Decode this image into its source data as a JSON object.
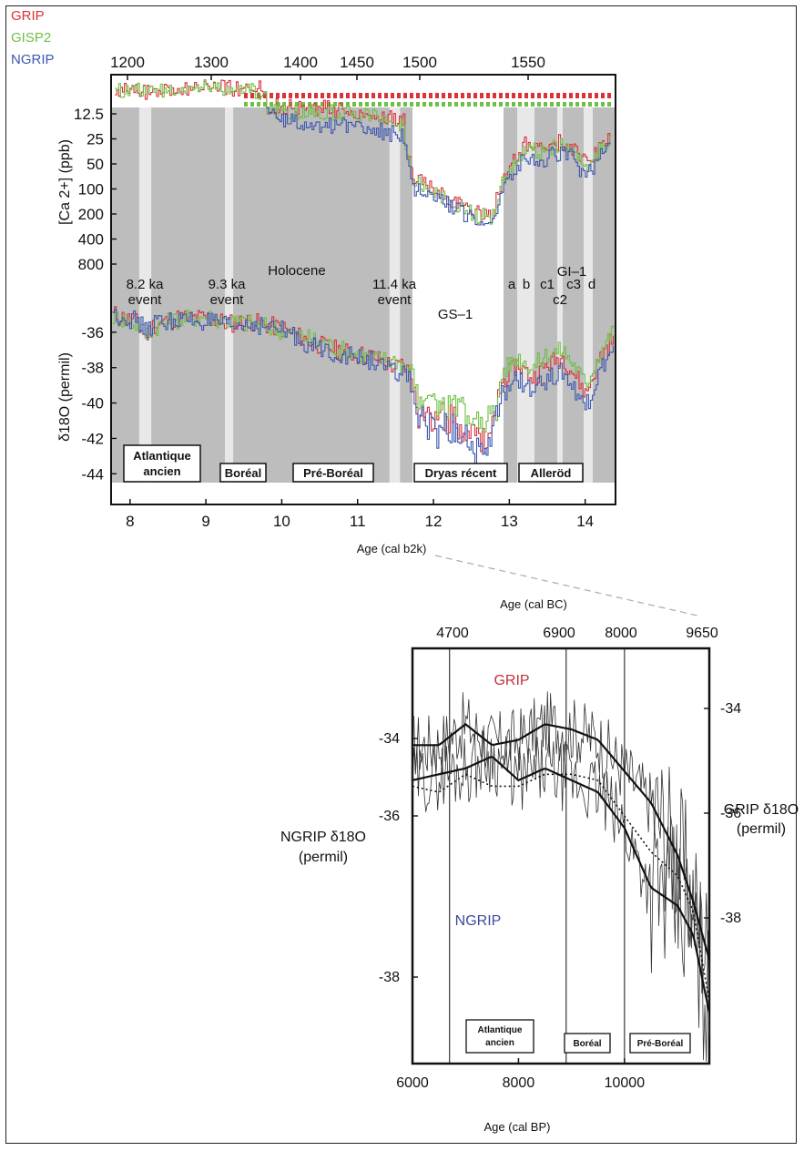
{
  "chart_data": [
    {
      "type": "line",
      "legend": [
        {
          "name": "GRIP",
          "color": "#d9323a"
        },
        {
          "name": "GISP2",
          "color": "#6fbf44"
        },
        {
          "name": "NGRIP",
          "color": "#3d56b0"
        }
      ],
      "top_axis_ticks": [
        "1200",
        "1300",
        "1400",
        "1450",
        "1500",
        "1550"
      ],
      "x_axis": {
        "label": "Age (cal b2k)",
        "ticks": [
          "8",
          "9",
          "10",
          "11",
          "12",
          "13",
          "14"
        ],
        "range": [
          7.75,
          14.4
        ]
      },
      "ca_axis": {
        "label": "[Ca 2+] (ppb)",
        "scale": "log",
        "ticks": [
          "12.5",
          "25",
          "50",
          "100",
          "200",
          "400",
          "800"
        ]
      },
      "d18o_axis": {
        "label": "δ18O (permil)",
        "ticks": [
          "-36",
          "-38",
          "-40",
          "-42",
          "-44"
        ],
        "range": [
          -44.5,
          -34
        ]
      },
      "annotations": {
        "holocene": "Holocene",
        "event_82_a": "8.2 ka",
        "event_82_b": "event",
        "event_93_a": "9.3 ka",
        "event_93_b": "event",
        "event_114_a": "11.4 ka",
        "event_114_b": "event",
        "gs1": "GS–1",
        "gi1": "GI–1",
        "a": "a",
        "b": "b",
        "c1": "c1",
        "c2": "c2",
        "c3": "c3",
        "d": "d"
      },
      "period_boxes": {
        "atlantique": [
          "Atlantique",
          "ancien"
        ],
        "boreal": "Boréal",
        "preboreal": "Pré-Boréal",
        "dryas": "Dryas récent",
        "allerod": "Alleröd"
      },
      "series_d18o": [
        {
          "name": "GRIP",
          "x": [
            7.8,
            8.1,
            8.2,
            8.3,
            8.6,
            9.0,
            9.3,
            9.6,
            10.0,
            10.4,
            10.8,
            11.2,
            11.5,
            11.6,
            11.7,
            11.8,
            12.0,
            12.3,
            12.6,
            12.8,
            12.9,
            13.1,
            13.3,
            13.5,
            13.7,
            13.9,
            14.0,
            14.2,
            14.35
          ],
          "y": [
            -35.0,
            -35.5,
            -36.3,
            -35.6,
            -35.2,
            -35.2,
            -35.5,
            -35.4,
            -35.8,
            -36.6,
            -37.1,
            -37.4,
            -38.0,
            -37.8,
            -38.5,
            -40.5,
            -40.6,
            -41.2,
            -42.0,
            -41.2,
            -38.8,
            -37.8,
            -38.6,
            -37.8,
            -37.4,
            -38.7,
            -39.5,
            -37.3,
            -36.4
          ]
        },
        {
          "name": "GISP2",
          "x": [
            7.8,
            8.1,
            8.2,
            8.3,
            8.6,
            9.0,
            9.3,
            9.6,
            10.0,
            10.4,
            10.8,
            11.2,
            11.5,
            11.6,
            11.7,
            11.8,
            12.0,
            12.3,
            12.6,
            12.8,
            12.9,
            13.1,
            13.3,
            13.5,
            13.7,
            13.9,
            14.0,
            14.2,
            14.35
          ],
          "y": [
            -35.1,
            -35.6,
            -36.1,
            -35.7,
            -35.3,
            -35.1,
            -35.4,
            -35.5,
            -35.9,
            -36.4,
            -37.0,
            -37.5,
            -37.6,
            -37.9,
            -38.1,
            -39.8,
            -40.0,
            -40.4,
            -41.0,
            -40.6,
            -38.2,
            -37.4,
            -38.0,
            -37.2,
            -37.0,
            -38.2,
            -39.0,
            -37.0,
            -36.0
          ]
        },
        {
          "name": "NGRIP",
          "x": [
            7.8,
            8.1,
            8.2,
            8.3,
            8.6,
            9.0,
            9.3,
            9.6,
            10.0,
            10.4,
            10.8,
            11.2,
            11.5,
            11.6,
            11.7,
            11.8,
            12.0,
            12.3,
            12.6,
            12.8,
            12.9,
            13.1,
            13.3,
            13.5,
            13.7,
            13.9,
            14.0,
            14.2,
            14.35
          ],
          "y": [
            -35.0,
            -35.4,
            -36.0,
            -35.5,
            -35.3,
            -35.4,
            -35.7,
            -35.5,
            -35.9,
            -36.8,
            -37.3,
            -37.6,
            -38.4,
            -38.1,
            -39.0,
            -41.2,
            -41.4,
            -41.8,
            -42.4,
            -41.6,
            -39.6,
            -38.6,
            -39.4,
            -38.6,
            -38.2,
            -39.5,
            -40.3,
            -38.0,
            -37.0
          ]
        }
      ],
      "series_ca": [
        {
          "name": "GRIP",
          "x": [
            7.8,
            8.2,
            8.6,
            9.0,
            9.4,
            9.8,
            10.2,
            10.6,
            11.0,
            11.4,
            11.6,
            11.75,
            12.0,
            12.3,
            12.6,
            12.75,
            12.9,
            13.0,
            13.2,
            13.4,
            13.6,
            13.8,
            14.0,
            14.2,
            14.35
          ],
          "y": [
            10,
            12,
            9,
            8,
            9,
            10,
            11,
            11,
            12,
            14,
            16,
            75,
            100,
            150,
            200,
            210,
            70,
            55,
            30,
            35,
            28,
            30,
            50,
            30,
            25
          ]
        },
        {
          "name": "GISP2",
          "x": [
            7.8,
            8.2,
            8.6,
            9.0,
            9.4,
            9.8,
            10.2,
            10.6,
            11.0,
            11.4,
            11.6,
            11.75,
            12.0,
            12.3,
            12.6,
            12.75,
            12.9,
            13.0,
            13.2,
            13.4,
            13.6,
            13.8,
            14.0,
            14.2,
            14.35
          ],
          "y": [
            11,
            11,
            10,
            9,
            10,
            11,
            12,
            12,
            13,
            15,
            17,
            85,
            110,
            160,
            220,
            220,
            80,
            60,
            32,
            38,
            30,
            34,
            55,
            32,
            26
          ]
        },
        {
          "name": "NGRIP",
          "x": [
            9.8,
            10.2,
            10.6,
            11.0,
            11.4,
            11.6,
            11.75,
            12.0,
            12.3,
            12.6,
            12.75,
            12.9,
            13.0,
            13.2,
            13.4,
            13.6,
            13.8,
            14.0,
            14.2,
            14.35
          ],
          "y": [
            13,
            16,
            18,
            17,
            22,
            24,
            100,
            130,
            180,
            250,
            260,
            90,
            70,
            40,
            48,
            38,
            42,
            70,
            40,
            32
          ]
        }
      ]
    },
    {
      "type": "line",
      "top_axis_label": "Age (cal BC)",
      "top_axis_ticks": [
        "4700",
        "6900",
        "8000",
        "9650"
      ],
      "x_axis": {
        "label": "Age (cal BP)",
        "ticks": [
          "6000",
          "8000",
          "10000"
        ],
        "range": [
          6000,
          11600
        ]
      },
      "left_axis": {
        "label": [
          "NGRIP δ18O",
          "(permil)"
        ],
        "ticks": [
          "-34",
          "-36",
          "-38"
        ]
      },
      "right_axis": {
        "label": [
          "GRIP δ18O",
          "(permil)"
        ],
        "ticks": [
          "-34",
          "-36",
          "-38"
        ]
      },
      "series_labels": {
        "grip": "GRIP",
        "ngrip": "NGRIP"
      },
      "period_boxes": {
        "atlantique": [
          "Atlantique",
          "ancien"
        ],
        "boreal": "Boréal",
        "preboreal": "Pré-Boréal"
      },
      "grip_smooth": {
        "x": [
          6000,
          6500,
          7000,
          7500,
          8000,
          8500,
          9000,
          9500,
          10000,
          10500,
          11000,
          11300,
          11600
        ],
        "y": [
          -34.7,
          -34.7,
          -34.3,
          -34.7,
          -34.6,
          -34.3,
          -34.4,
          -34.6,
          -35.2,
          -35.8,
          -36.8,
          -37.7,
          -38.8
        ]
      },
      "ngrip_smooth": {
        "x": [
          6000,
          6500,
          7000,
          7500,
          8000,
          8500,
          9000,
          9500,
          10000,
          10500,
          11000,
          11300,
          11600
        ],
        "y": [
          -34.7,
          -34.6,
          -34.5,
          -34.3,
          -34.7,
          -34.5,
          -34.7,
          -34.9,
          -35.5,
          -36.5,
          -36.8,
          -37.3,
          -38.6
        ]
      },
      "ngrip_dotted": {
        "x": [
          6000,
          6500,
          7000,
          7500,
          8000,
          8500,
          9000,
          9500,
          10000,
          10500,
          11000,
          11300,
          11600
        ],
        "y": [
          -34.8,
          -34.9,
          -34.6,
          -34.8,
          -34.8,
          -34.6,
          -34.6,
          -34.7,
          -35.3,
          -35.9,
          -36.3,
          -36.9,
          -38.4
        ]
      }
    }
  ]
}
